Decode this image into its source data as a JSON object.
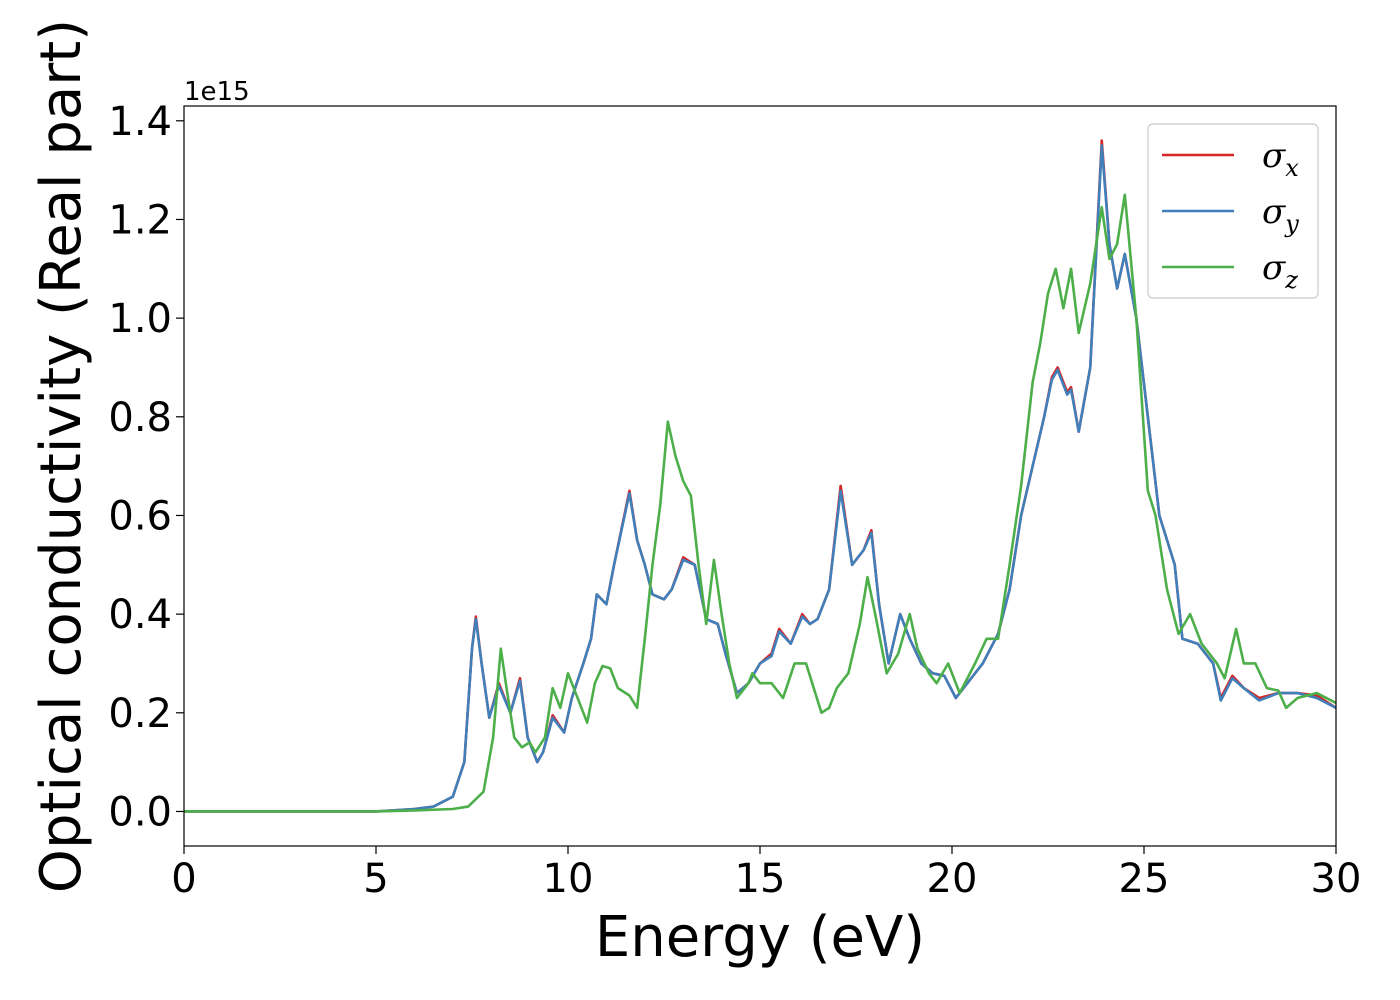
{
  "chart_data": {
    "type": "line",
    "title": "",
    "xlabel": "Energy (eV)",
    "ylabel": "Optical conductivity (Real part)",
    "y_offset_text": "1e15",
    "xlim": [
      0,
      30
    ],
    "ylim": [
      -0.07,
      1.43
    ],
    "x_ticks": [
      0,
      5,
      10,
      15,
      20,
      25,
      30
    ],
    "x_tick_labels": [
      "0",
      "5",
      "10",
      "15",
      "20",
      "25",
      "30"
    ],
    "y_ticks": [
      0.0,
      0.2,
      0.4,
      0.6,
      0.8,
      1.0,
      1.2,
      1.4
    ],
    "y_tick_labels": [
      "0.0",
      "0.2",
      "0.4",
      "0.6",
      "0.8",
      "1.0",
      "1.2",
      "1.4"
    ],
    "grid": false,
    "legend_position": "top-right",
    "colors": {
      "sigma_x": "#d62728",
      "sigma_y": "#3f7fba",
      "sigma_z": "#4daf4a"
    },
    "series": [
      {
        "name": "σ_x",
        "legend_base": "σ",
        "legend_sub": "x",
        "color": "#d62728",
        "points": [
          [
            0,
            0.0
          ],
          [
            5,
            0.0
          ],
          [
            6,
            0.005
          ],
          [
            6.5,
            0.01
          ],
          [
            7,
            0.03
          ],
          [
            7.3,
            0.1
          ],
          [
            7.5,
            0.33
          ],
          [
            7.6,
            0.395
          ],
          [
            7.75,
            0.3
          ],
          [
            7.95,
            0.19
          ],
          [
            8.2,
            0.26
          ],
          [
            8.5,
            0.2
          ],
          [
            8.75,
            0.27
          ],
          [
            8.95,
            0.15
          ],
          [
            9.2,
            0.1
          ],
          [
            9.35,
            0.12
          ],
          [
            9.6,
            0.195
          ],
          [
            9.9,
            0.16
          ],
          [
            10.1,
            0.23
          ],
          [
            10.4,
            0.3
          ],
          [
            10.6,
            0.35
          ],
          [
            10.75,
            0.44
          ],
          [
            11,
            0.42
          ],
          [
            11.2,
            0.5
          ],
          [
            11.6,
            0.65
          ],
          [
            11.8,
            0.55
          ],
          [
            12,
            0.5
          ],
          [
            12.2,
            0.44
          ],
          [
            12.5,
            0.43
          ],
          [
            12.7,
            0.45
          ],
          [
            13,
            0.515
          ],
          [
            13.3,
            0.5
          ],
          [
            13.6,
            0.39
          ],
          [
            13.9,
            0.38
          ],
          [
            14.1,
            0.32
          ],
          [
            14.4,
            0.24
          ],
          [
            14.7,
            0.26
          ],
          [
            15,
            0.3
          ],
          [
            15.3,
            0.32
          ],
          [
            15.5,
            0.37
          ],
          [
            15.8,
            0.34
          ],
          [
            16.1,
            0.4
          ],
          [
            16.3,
            0.38
          ],
          [
            16.5,
            0.39
          ],
          [
            16.8,
            0.45
          ],
          [
            17.1,
            0.66
          ],
          [
            17.4,
            0.5
          ],
          [
            17.7,
            0.53
          ],
          [
            17.9,
            0.57
          ],
          [
            18.1,
            0.42
          ],
          [
            18.35,
            0.3
          ],
          [
            18.65,
            0.4
          ],
          [
            18.9,
            0.35
          ],
          [
            19.2,
            0.3
          ],
          [
            19.5,
            0.28
          ],
          [
            19.8,
            0.275
          ],
          [
            20.1,
            0.23
          ],
          [
            20.4,
            0.26
          ],
          [
            20.8,
            0.3
          ],
          [
            21.2,
            0.36
          ],
          [
            21.5,
            0.45
          ],
          [
            21.8,
            0.6
          ],
          [
            22.1,
            0.7
          ],
          [
            22.4,
            0.8
          ],
          [
            22.6,
            0.88
          ],
          [
            22.75,
            0.9
          ],
          [
            23.0,
            0.85
          ],
          [
            23.1,
            0.86
          ],
          [
            23.3,
            0.77
          ],
          [
            23.6,
            0.9
          ],
          [
            23.9,
            1.36
          ],
          [
            24.1,
            1.15
          ],
          [
            24.3,
            1.06
          ],
          [
            24.5,
            1.13
          ],
          [
            24.8,
            1.0
          ],
          [
            25.1,
            0.8
          ],
          [
            25.4,
            0.6
          ],
          [
            25.6,
            0.55
          ],
          [
            25.8,
            0.5
          ],
          [
            26,
            0.35
          ],
          [
            26.4,
            0.34
          ],
          [
            26.8,
            0.3
          ],
          [
            27,
            0.23
          ],
          [
            27.3,
            0.275
          ],
          [
            27.6,
            0.25
          ],
          [
            28,
            0.23
          ],
          [
            28.5,
            0.24
          ],
          [
            29,
            0.24
          ],
          [
            29.5,
            0.235
          ],
          [
            30,
            0.21
          ]
        ]
      },
      {
        "name": "σ_y",
        "legend_base": "σ",
        "legend_sub": "y",
        "color": "#3f7fba",
        "points": [
          [
            0,
            0.0
          ],
          [
            5,
            0.0
          ],
          [
            6,
            0.005
          ],
          [
            6.5,
            0.01
          ],
          [
            7,
            0.03
          ],
          [
            7.3,
            0.1
          ],
          [
            7.5,
            0.33
          ],
          [
            7.6,
            0.39
          ],
          [
            7.75,
            0.3
          ],
          [
            7.95,
            0.19
          ],
          [
            8.2,
            0.255
          ],
          [
            8.5,
            0.2
          ],
          [
            8.75,
            0.265
          ],
          [
            8.95,
            0.15
          ],
          [
            9.2,
            0.1
          ],
          [
            9.35,
            0.12
          ],
          [
            9.6,
            0.19
          ],
          [
            9.9,
            0.16
          ],
          [
            10.1,
            0.23
          ],
          [
            10.4,
            0.3
          ],
          [
            10.6,
            0.35
          ],
          [
            10.75,
            0.44
          ],
          [
            11,
            0.42
          ],
          [
            11.2,
            0.5
          ],
          [
            11.6,
            0.645
          ],
          [
            11.8,
            0.55
          ],
          [
            12,
            0.5
          ],
          [
            12.2,
            0.44
          ],
          [
            12.5,
            0.43
          ],
          [
            12.7,
            0.45
          ],
          [
            13,
            0.51
          ],
          [
            13.3,
            0.5
          ],
          [
            13.6,
            0.39
          ],
          [
            13.9,
            0.38
          ],
          [
            14.1,
            0.32
          ],
          [
            14.4,
            0.24
          ],
          [
            14.7,
            0.26
          ],
          [
            15,
            0.3
          ],
          [
            15.3,
            0.315
          ],
          [
            15.5,
            0.365
          ],
          [
            15.8,
            0.34
          ],
          [
            16.1,
            0.395
          ],
          [
            16.3,
            0.38
          ],
          [
            16.5,
            0.39
          ],
          [
            16.8,
            0.45
          ],
          [
            17.1,
            0.65
          ],
          [
            17.4,
            0.5
          ],
          [
            17.7,
            0.53
          ],
          [
            17.9,
            0.565
          ],
          [
            18.1,
            0.42
          ],
          [
            18.35,
            0.3
          ],
          [
            18.65,
            0.4
          ],
          [
            18.9,
            0.35
          ],
          [
            19.2,
            0.3
          ],
          [
            19.5,
            0.28
          ],
          [
            19.8,
            0.275
          ],
          [
            20.1,
            0.23
          ],
          [
            20.4,
            0.26
          ],
          [
            20.8,
            0.3
          ],
          [
            21.2,
            0.36
          ],
          [
            21.5,
            0.45
          ],
          [
            21.8,
            0.6
          ],
          [
            22.1,
            0.7
          ],
          [
            22.4,
            0.8
          ],
          [
            22.6,
            0.875
          ],
          [
            22.75,
            0.895
          ],
          [
            23.0,
            0.845
          ],
          [
            23.1,
            0.855
          ],
          [
            23.3,
            0.77
          ],
          [
            23.6,
            0.9
          ],
          [
            23.9,
            1.35
          ],
          [
            24.1,
            1.15
          ],
          [
            24.3,
            1.06
          ],
          [
            24.5,
            1.13
          ],
          [
            24.8,
            1.0
          ],
          [
            25.1,
            0.8
          ],
          [
            25.4,
            0.6
          ],
          [
            25.6,
            0.55
          ],
          [
            25.8,
            0.5
          ],
          [
            26,
            0.35
          ],
          [
            26.4,
            0.34
          ],
          [
            26.8,
            0.3
          ],
          [
            27,
            0.225
          ],
          [
            27.3,
            0.27
          ],
          [
            27.6,
            0.25
          ],
          [
            28,
            0.225
          ],
          [
            28.5,
            0.24
          ],
          [
            29,
            0.24
          ],
          [
            29.5,
            0.23
          ],
          [
            30,
            0.21
          ]
        ]
      },
      {
        "name": "σ_z",
        "legend_base": "σ",
        "legend_sub": "z",
        "color": "#4daf4a",
        "points": [
          [
            0,
            0.0
          ],
          [
            5,
            0.0
          ],
          [
            6,
            0.002
          ],
          [
            7,
            0.005
          ],
          [
            7.4,
            0.01
          ],
          [
            7.8,
            0.04
          ],
          [
            8.05,
            0.15
          ],
          [
            8.25,
            0.33
          ],
          [
            8.4,
            0.25
          ],
          [
            8.6,
            0.15
          ],
          [
            8.8,
            0.13
          ],
          [
            9.0,
            0.14
          ],
          [
            9.15,
            0.12
          ],
          [
            9.4,
            0.15
          ],
          [
            9.6,
            0.25
          ],
          [
            9.8,
            0.21
          ],
          [
            10.0,
            0.28
          ],
          [
            10.2,
            0.24
          ],
          [
            10.5,
            0.18
          ],
          [
            10.7,
            0.26
          ],
          [
            10.9,
            0.295
          ],
          [
            11.1,
            0.29
          ],
          [
            11.3,
            0.25
          ],
          [
            11.6,
            0.235
          ],
          [
            11.8,
            0.21
          ],
          [
            12.0,
            0.35
          ],
          [
            12.2,
            0.5
          ],
          [
            12.4,
            0.62
          ],
          [
            12.6,
            0.79
          ],
          [
            12.8,
            0.72
          ],
          [
            13.0,
            0.67
          ],
          [
            13.2,
            0.64
          ],
          [
            13.4,
            0.5
          ],
          [
            13.6,
            0.38
          ],
          [
            13.8,
            0.51
          ],
          [
            14.0,
            0.4
          ],
          [
            14.2,
            0.3
          ],
          [
            14.4,
            0.23
          ],
          [
            14.7,
            0.26
          ],
          [
            14.8,
            0.28
          ],
          [
            15.0,
            0.26
          ],
          [
            15.3,
            0.26
          ],
          [
            15.6,
            0.23
          ],
          [
            15.9,
            0.3
          ],
          [
            16.2,
            0.3
          ],
          [
            16.4,
            0.25
          ],
          [
            16.6,
            0.2
          ],
          [
            16.8,
            0.21
          ],
          [
            17.0,
            0.25
          ],
          [
            17.3,
            0.28
          ],
          [
            17.6,
            0.38
          ],
          [
            17.8,
            0.475
          ],
          [
            18.0,
            0.4
          ],
          [
            18.3,
            0.28
          ],
          [
            18.6,
            0.32
          ],
          [
            18.9,
            0.4
          ],
          [
            19.1,
            0.33
          ],
          [
            19.4,
            0.28
          ],
          [
            19.6,
            0.26
          ],
          [
            19.9,
            0.3
          ],
          [
            20.2,
            0.24
          ],
          [
            20.6,
            0.3
          ],
          [
            20.9,
            0.35
          ],
          [
            21.2,
            0.35
          ],
          [
            21.5,
            0.5
          ],
          [
            21.8,
            0.66
          ],
          [
            22.1,
            0.87
          ],
          [
            22.3,
            0.95
          ],
          [
            22.5,
            1.05
          ],
          [
            22.7,
            1.1
          ],
          [
            22.9,
            1.02
          ],
          [
            23.1,
            1.1
          ],
          [
            23.3,
            0.97
          ],
          [
            23.6,
            1.07
          ],
          [
            23.9,
            1.225
          ],
          [
            24.1,
            1.12
          ],
          [
            24.3,
            1.15
          ],
          [
            24.5,
            1.25
          ],
          [
            24.8,
            1.0
          ],
          [
            25.1,
            0.65
          ],
          [
            25.3,
            0.6
          ],
          [
            25.6,
            0.45
          ],
          [
            25.9,
            0.36
          ],
          [
            26.2,
            0.4
          ],
          [
            26.5,
            0.34
          ],
          [
            26.9,
            0.3
          ],
          [
            27.1,
            0.27
          ],
          [
            27.4,
            0.37
          ],
          [
            27.6,
            0.3
          ],
          [
            27.9,
            0.3
          ],
          [
            28.2,
            0.25
          ],
          [
            28.5,
            0.245
          ],
          [
            28.7,
            0.21
          ],
          [
            29.0,
            0.23
          ],
          [
            29.5,
            0.24
          ],
          [
            30,
            0.22
          ]
        ]
      }
    ]
  }
}
